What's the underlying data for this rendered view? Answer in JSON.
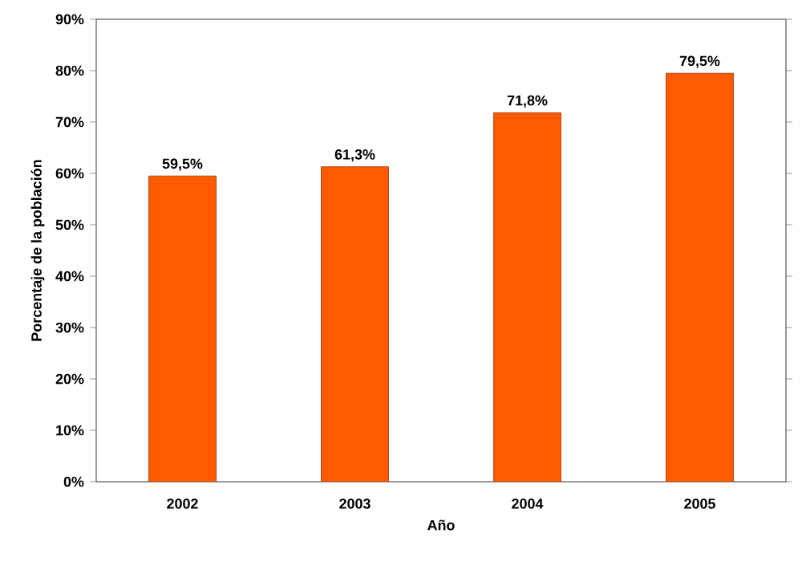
{
  "chart_data": {
    "type": "bar",
    "xlabel": "Año",
    "ylabel": "Porcentaje de la población",
    "categories": [
      "2002",
      "2003",
      "2004",
      "2005"
    ],
    "values": [
      59.5,
      61.3,
      71.8,
      79.5
    ],
    "value_labels": [
      "59,5%",
      "61,3%",
      "71,8%",
      "79,5%"
    ],
    "color": "#ff5a00",
    "ylim": [
      0,
      90
    ],
    "yticks": [
      {
        "value": 0,
        "label": "0%"
      },
      {
        "value": 10,
        "label": "10%"
      },
      {
        "value": 20,
        "label": "20%"
      },
      {
        "value": 30,
        "label": "30%"
      },
      {
        "value": 40,
        "label": "40%"
      },
      {
        "value": 50,
        "label": "50%"
      },
      {
        "value": 60,
        "label": "60%"
      },
      {
        "value": 70,
        "label": "70%"
      },
      {
        "value": 80,
        "label": "80%"
      },
      {
        "value": 90,
        "label": "90%"
      }
    ]
  }
}
